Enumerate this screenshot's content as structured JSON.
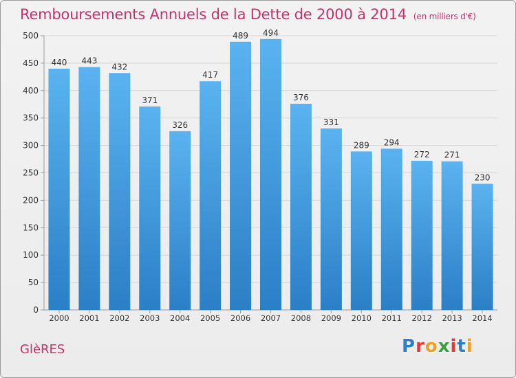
{
  "header": {
    "title": "Remboursements Annuels de la Dette de 2000 à 2014",
    "unit": "(en milliers d'€)"
  },
  "footer": {
    "commune": "GlèRES",
    "logo_text": "Proxiti",
    "logo_colors": [
      "#2f7fc8",
      "#e23a3a",
      "#f0a020",
      "#3aa03a",
      "#e23a3a",
      "#2f7fc8",
      "#f0a020"
    ]
  },
  "colors": {
    "title": "#c8306e",
    "bar": "#4aa3e8",
    "bar_dark": "#2f86cf"
  },
  "chart_data": {
    "type": "bar",
    "title": "Remboursements Annuels de la Dette de 2000 à 2014",
    "categories": [
      "2000",
      "2001",
      "2002",
      "2003",
      "2004",
      "2005",
      "2006",
      "2007",
      "2008",
      "2009",
      "2010",
      "2011",
      "2012",
      "2013",
      "2014"
    ],
    "values": [
      440,
      443,
      432,
      371,
      326,
      417,
      489,
      494,
      376,
      331,
      289,
      294,
      272,
      271,
      230
    ],
    "ylim": [
      0,
      500
    ],
    "yticks": [
      0,
      50,
      100,
      150,
      200,
      250,
      300,
      350,
      400,
      450,
      500
    ],
    "grid": true,
    "data_labels": true
  }
}
